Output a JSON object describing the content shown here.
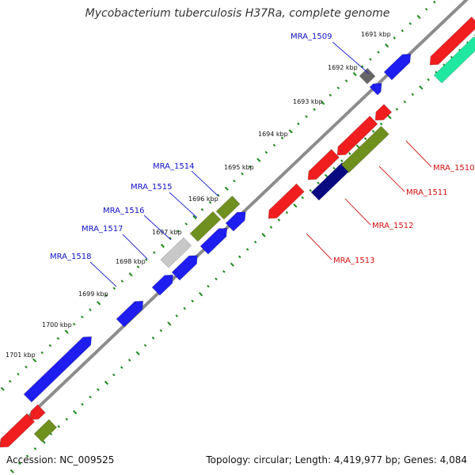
{
  "title": "Mycobacterium tuberculosis H37Ra, complete genome",
  "footer": {
    "accession": "Accession: NC_009525",
    "summary": "Topology: circular; Length: 4,419,977 bp; Genes: 4,084"
  },
  "colors": {
    "backbone": "#8c8c8c",
    "tick": "#1a8a1a",
    "label_forward": "#1010c8",
    "label_reverse": "#d01010",
    "leader_forward": "#2020d0",
    "leader_reverse": "#d02020"
  },
  "kbp_ticks": [
    "1691 kbp",
    "1692 kbp",
    "1693 kbp",
    "1694 kbp",
    "1695 kbp",
    "1696 kbp",
    "1697 kbp",
    "1698 kbp",
    "1699 kbp",
    "1700 kbp",
    "1701 kbp"
  ],
  "gene_labels_forward": [
    "MRA_1509",
    "MRA_1514",
    "MRA_1515",
    "MRA_1516",
    "MRA_1517",
    "MRA_1518"
  ],
  "gene_labels_reverse": [
    "MRA_1510",
    "MRA_1511",
    "MRA_1512",
    "MRA_1513"
  ]
}
